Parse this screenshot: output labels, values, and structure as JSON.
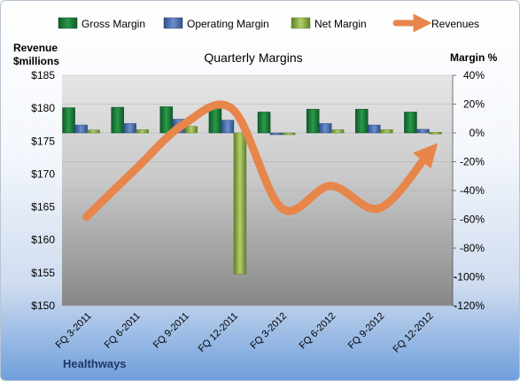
{
  "chart_data": {
    "type": "bar",
    "title": "Quarterly Margins",
    "company": "Healthways",
    "y_left_label_line1": "Revenue",
    "y_left_label_line2": "$millions",
    "y_right_label": "Margin %",
    "y_left_ticks": [
      "$185",
      "$180",
      "$175",
      "$170",
      "$165",
      "$160",
      "$155",
      "$150"
    ],
    "y_right_ticks": [
      "40%",
      "20%",
      "0%",
      "-20%",
      "-40%",
      "-60%",
      "-80%",
      "-100%",
      "-120%"
    ],
    "ylim_left": [
      150,
      185
    ],
    "ylim_right": [
      -120,
      40
    ],
    "categories": [
      "FQ 3-2011",
      "FQ 6-2011",
      "FQ 9-2011",
      "FQ 12-2011",
      "FQ 3-2012",
      "FQ 6-2012",
      "FQ 9-2012",
      "FQ 12-2012"
    ],
    "series": [
      {
        "name": "Gross Margin",
        "axis": "right",
        "color": "#1e7a3a",
        "values": [
          17.5,
          17.8,
          18.2,
          17.8,
          14.5,
          16.5,
          16.5,
          14.5
        ]
      },
      {
        "name": "Operating Margin",
        "axis": "right",
        "color": "#4a6fb0",
        "values": [
          5.5,
          6.5,
          9.5,
          8.8,
          -0.6,
          6.5,
          5.5,
          2.5
        ]
      },
      {
        "name": "Net Margin",
        "axis": "right",
        "color": "#93b850",
        "values": [
          2.0,
          2.2,
          4.5,
          -98,
          -1.0,
          2.2,
          2.2,
          0.5
        ]
      },
      {
        "name": "Revenues",
        "axis": "left",
        "color": "#e8854a",
        "type": "line",
        "values": [
          163.5,
          170.7,
          177.6,
          179.8,
          164.8,
          168.2,
          164.8,
          173.1
        ]
      }
    ],
    "grid": true,
    "legend_position": "top"
  }
}
